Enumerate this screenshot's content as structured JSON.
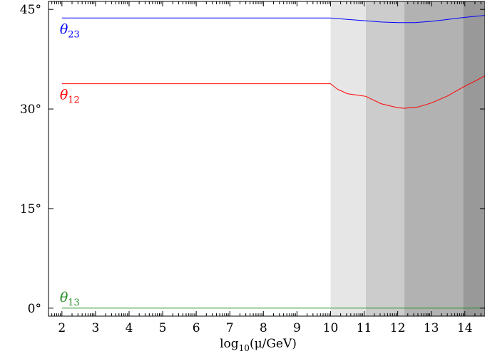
{
  "chart_data": {
    "type": "line",
    "xlabel_parts": {
      "base": "log",
      "sub": "10",
      "rest": "(μ/GeV)"
    },
    "ylabel": "",
    "xlim": [
      1.6,
      14.6
    ],
    "ylim": [
      -1.2,
      46.2
    ],
    "x_ticks": [
      2,
      3,
      4,
      5,
      6,
      7,
      8,
      9,
      10,
      11,
      12,
      13,
      14
    ],
    "x_tick_labels": [
      "2",
      "3",
      "4",
      "5",
      "6",
      "7",
      "8",
      "9",
      "10",
      "11",
      "12",
      "13",
      "14"
    ],
    "y_ticks": [
      0,
      15,
      30,
      45
    ],
    "y_tick_labels": [
      "0°",
      "15°",
      "30°",
      "45°"
    ],
    "grid": false,
    "bands": [
      {
        "x_start": 10.0,
        "x_end": 11.05,
        "color": "#e6e6e6"
      },
      {
        "x_start": 11.05,
        "x_end": 12.2,
        "color": "#cccccc"
      },
      {
        "x_start": 12.2,
        "x_end": 13.95,
        "color": "#b2b2b2"
      },
      {
        "x_start": 13.95,
        "x_end": 14.6,
        "color": "#999999"
      }
    ],
    "series": [
      {
        "label_symbol": "θ",
        "label_sub": "23",
        "color": "#0000ff",
        "x": [
          2,
          10,
          10.5,
          11,
          11.5,
          12,
          12.5,
          13,
          13.5,
          14,
          14.6
        ],
        "y": [
          43.7,
          43.7,
          43.5,
          43.3,
          43.1,
          43.0,
          43.0,
          43.2,
          43.5,
          43.8,
          44.1
        ]
      },
      {
        "label_symbol": "θ",
        "label_sub": "12",
        "color": "#ff0000",
        "x": [
          2,
          10,
          10.2,
          10.5,
          11.05,
          11.5,
          12.0,
          12.2,
          12.6,
          13.0,
          13.5,
          13.95,
          14.3,
          14.6
        ],
        "y": [
          33.8,
          33.8,
          33.0,
          32.3,
          31.9,
          30.8,
          30.2,
          30.1,
          30.3,
          30.9,
          32.0,
          33.3,
          34.2,
          35.0
        ]
      },
      {
        "label_symbol": "θ",
        "label_sub": "13",
        "color": "#228b22",
        "x": [
          2,
          14.6
        ],
        "y": [
          0.0,
          0.0
        ]
      }
    ]
  }
}
